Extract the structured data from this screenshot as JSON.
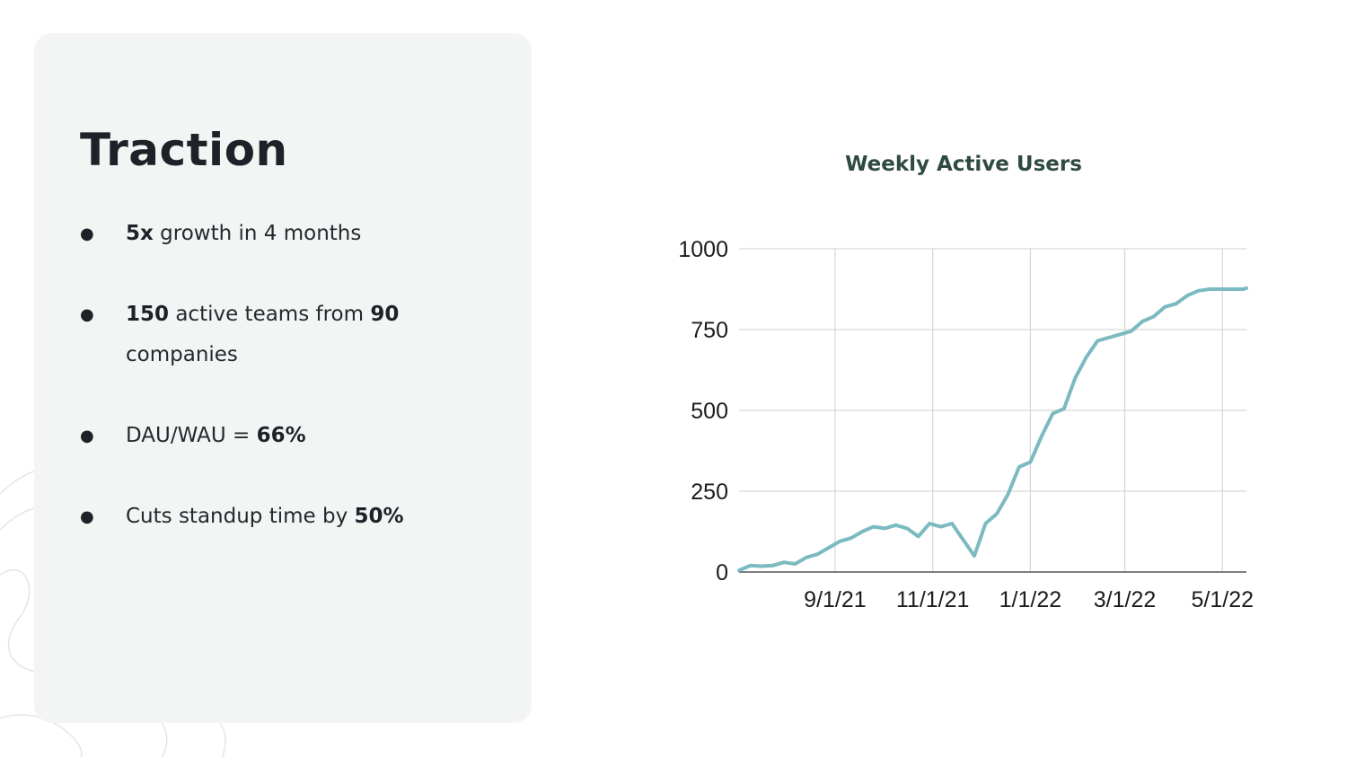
{
  "slide": {
    "title": "Traction",
    "bullets": [
      {
        "parts": [
          {
            "text": "5x",
            "bold": true
          },
          {
            "text": " growth in 4 months",
            "bold": false
          }
        ]
      },
      {
        "parts": [
          {
            "text": "150",
            "bold": true
          },
          {
            "text": " active teams from ",
            "bold": false
          },
          {
            "text": "90",
            "bold": true
          },
          {
            "text": " companies",
            "bold": false
          }
        ]
      },
      {
        "parts": [
          {
            "text": "DAU/WAU = ",
            "bold": false
          },
          {
            "text": "66%",
            "bold": true
          }
        ]
      },
      {
        "parts": [
          {
            "text": "Cuts standup time by ",
            "bold": false
          },
          {
            "text": "50%",
            "bold": true
          }
        ]
      }
    ],
    "bullet_glyph": "●"
  },
  "chart_data": {
    "type": "line",
    "title": "Weekly Active Users",
    "xlabel": "",
    "ylabel": "",
    "ylim": [
      0,
      1000
    ],
    "yticks": [
      "0",
      "250",
      "500",
      "750",
      "1000"
    ],
    "xtick_labels": [
      "9/1/21",
      "11/1/21",
      "1/1/22",
      "3/1/22",
      "5/1/22"
    ],
    "xlim": [
      "2021-07-03",
      "2022-05-16"
    ],
    "grid": true,
    "line_color": "#7bbac0",
    "series": [
      {
        "x": [
          "2021-07-03",
          "2021-07-10",
          "2021-07-17",
          "2021-07-24",
          "2021-07-31",
          "2021-08-07",
          "2021-08-14",
          "2021-08-21",
          "2021-08-28",
          "2021-09-04",
          "2021-09-11",
          "2021-09-18",
          "2021-09-25",
          "2021-10-02",
          "2021-10-09",
          "2021-10-16",
          "2021-10-23",
          "2021-10-30",
          "2021-11-06",
          "2021-11-13",
          "2021-11-20",
          "2021-11-27",
          "2021-12-04",
          "2021-12-11",
          "2021-12-18",
          "2021-12-25",
          "2022-01-01",
          "2022-01-08",
          "2022-01-15",
          "2022-01-22",
          "2022-01-29",
          "2022-02-05",
          "2022-02-12",
          "2022-02-19",
          "2022-02-26",
          "2022-03-05",
          "2022-03-12",
          "2022-03-19",
          "2022-03-26",
          "2022-04-02",
          "2022-04-09",
          "2022-04-16",
          "2022-04-23",
          "2022-04-30",
          "2022-05-07",
          "2022-05-14",
          "2022-05-16"
        ],
        "values": [
          5,
          20,
          18,
          20,
          30,
          25,
          45,
          55,
          75,
          95,
          105,
          125,
          140,
          135,
          145,
          135,
          110,
          150,
          140,
          150,
          100,
          50,
          150,
          180,
          240,
          325,
          340,
          420,
          490,
          505,
          600,
          665,
          715,
          725,
          735,
          745,
          775,
          790,
          820,
          830,
          855,
          870,
          875,
          875,
          875,
          875,
          878
        ]
      }
    ]
  }
}
